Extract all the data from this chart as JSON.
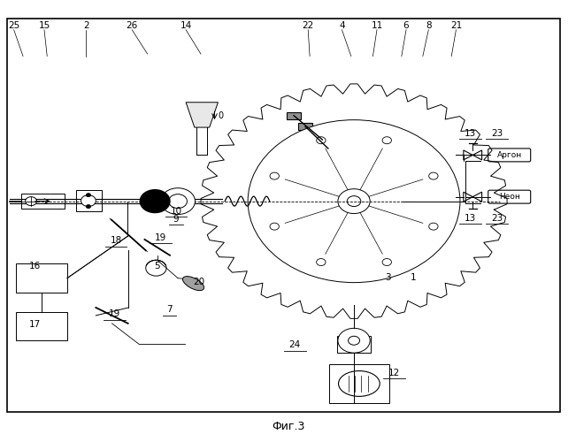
{
  "title": "Фиг.3",
  "bg_color": "#ffffff",
  "border_color": "#000000",
  "line_color": "#000000",
  "fig_width": 6.51,
  "fig_height": 5.0,
  "dpi": 100,
  "label_font_size": 7.5,
  "title_font_size": 9
}
